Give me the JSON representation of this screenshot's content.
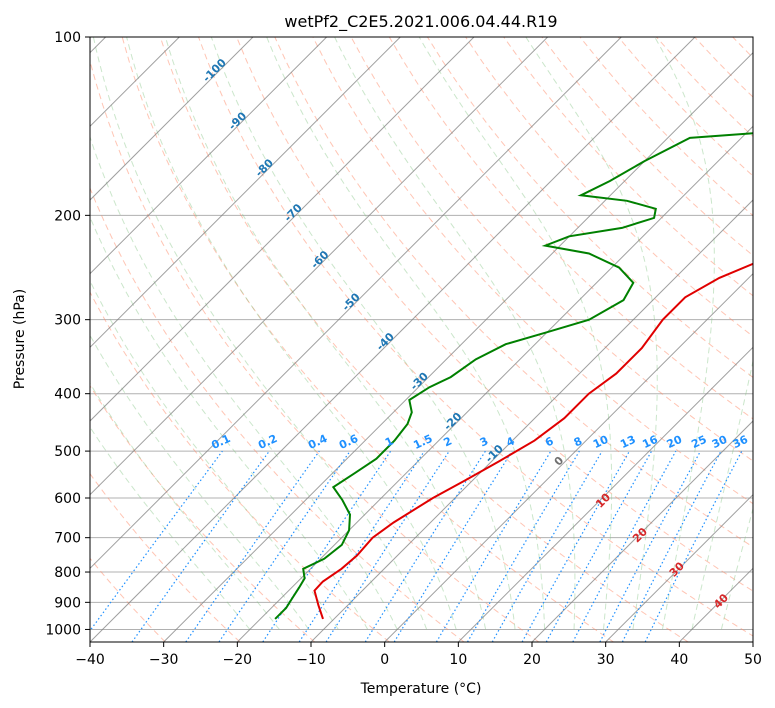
{
  "chart_data": {
    "type": "line",
    "title": "wetPf2_C2E5.2021.006.04.44.R19",
    "xlabel": "Temperature (°C)",
    "ylabel": "Pressure (hPa)",
    "xlim": [
      -40,
      50
    ],
    "ylim": [
      1050,
      100
    ],
    "y_scale": "log",
    "grid": true,
    "x_ticks": [
      -40,
      -30,
      -20,
      -10,
      0,
      10,
      20,
      30,
      40,
      50
    ],
    "y_ticks": [
      100,
      200,
      300,
      400,
      500,
      600,
      700,
      800,
      900,
      1000
    ],
    "series": [
      {
        "role": "temperature",
        "color": "#e00000",
        "points": [
          [
            -11.5,
            960
          ],
          [
            -14,
            910
          ],
          [
            -16.5,
            860
          ],
          [
            -16.6,
            830
          ],
          [
            -15.8,
            790
          ],
          [
            -15.5,
            750
          ],
          [
            -15.8,
            700
          ],
          [
            -15,
            660
          ],
          [
            -13,
            600
          ],
          [
            -11,
            560
          ],
          [
            -9,
            520
          ],
          [
            -7,
            480
          ],
          [
            -6,
            440
          ],
          [
            -6,
            400
          ],
          [
            -5,
            370
          ],
          [
            -5,
            335
          ],
          [
            -6,
            300
          ],
          [
            -6,
            275
          ],
          [
            -4,
            255
          ],
          [
            0,
            235
          ],
          [
            4,
            218
          ],
          [
            9,
            200
          ],
          [
            16,
            178
          ],
          [
            20,
            160
          ],
          [
            23,
            145
          ],
          [
            26,
            133
          ],
          [
            27,
            122
          ],
          [
            27,
            112
          ],
          [
            28,
            105
          ],
          [
            29,
            100
          ]
        ]
      },
      {
        "role": "dewpoint",
        "color": "#008000",
        "points": [
          [
            -18,
            960
          ],
          [
            -18,
            920
          ],
          [
            -18.5,
            885
          ],
          [
            -19,
            850
          ],
          [
            -19.5,
            820
          ],
          [
            -21,
            790
          ],
          [
            -19.5,
            760
          ],
          [
            -19,
            720
          ],
          [
            -20,
            680
          ],
          [
            -22,
            640
          ],
          [
            -25,
            605
          ],
          [
            -28,
            575
          ],
          [
            -27,
            545
          ],
          [
            -26,
            515
          ],
          [
            -26,
            480
          ],
          [
            -26.5,
            450
          ],
          [
            -27.5,
            430
          ],
          [
            -29.5,
            410
          ],
          [
            -28.5,
            390
          ],
          [
            -27,
            375
          ],
          [
            -26,
            350
          ],
          [
            -24,
            330
          ],
          [
            -20,
            315
          ],
          [
            -16,
            300
          ],
          [
            -14,
            278
          ],
          [
            -15,
            260
          ],
          [
            -19,
            245
          ],
          [
            -25,
            232
          ],
          [
            -32,
            225
          ],
          [
            -30,
            217
          ],
          [
            -24,
            210
          ],
          [
            -21,
            202
          ],
          [
            -22,
            195
          ],
          [
            -27,
            189
          ],
          [
            -34,
            185
          ],
          [
            -32,
            175
          ],
          [
            -30,
            162
          ],
          [
            -27,
            148
          ],
          [
            -18,
            145
          ],
          [
            -15,
            138
          ],
          [
            -11,
            125
          ],
          [
            -7,
            115
          ],
          [
            -1,
            108
          ],
          [
            1,
            100
          ]
        ]
      }
    ],
    "isotherm_labels": [
      "-100",
      "-90",
      "-80",
      "-70",
      "-60",
      "-50",
      "-40",
      "-30",
      "-20",
      "-10"
    ],
    "mixing_ratio_labels": [
      "0.1",
      "0.2",
      "0.4",
      "0.6",
      "1",
      "1.5",
      "2",
      "3",
      "4",
      "6",
      "8",
      "10",
      "13",
      "16",
      "20",
      "25",
      "30",
      "36"
    ],
    "mixing_ratio_values": [
      0.1,
      0.2,
      0.4,
      0.6,
      1,
      1.5,
      2,
      3,
      4,
      6,
      8,
      10,
      13,
      16,
      20,
      25,
      30,
      36
    ],
    "dry_adiabat_labels": [
      "0",
      "10",
      "20",
      "30",
      "40"
    ],
    "colors": {
      "isotherm_label": "#1f77b4",
      "mixing_ratio": "#1e90ff",
      "dry_adiabat": "#ff8c69",
      "moist_adiabat": "#8cc88c",
      "skew_line": "#808080",
      "grid": "#b0b0b0",
      "adiabat_label_zero": "#707070",
      "adiabat_label": "#d62728",
      "ccl_curve": "#d2b48c"
    }
  }
}
